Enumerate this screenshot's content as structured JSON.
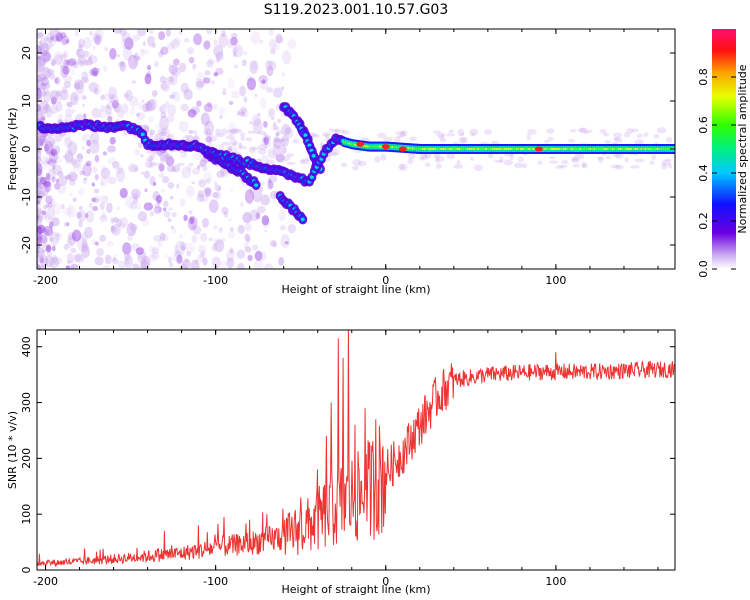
{
  "title": "S119.2023.001.10.57.G03",
  "chart_data": [
    {
      "type": "heatmap",
      "xlabel": "Height of straight line (km)",
      "ylabel": "Frequency (Hz)",
      "xlim": [
        -205,
        170
      ],
      "ylim": [
        -25,
        25
      ],
      "xticks": [
        -200,
        -100,
        0,
        100
      ],
      "xtick_labels": [
        "-200",
        "-100",
        "0",
        "100"
      ],
      "yticks": [
        -20,
        -10,
        0,
        10,
        20
      ],
      "ytick_labels": [
        "-20",
        "-10",
        "0",
        "10",
        "20"
      ],
      "colorbar": {
        "label": "Normalized spectral amplitude",
        "range": [
          0,
          1
        ],
        "ticks": [
          0.0,
          0.2,
          0.4,
          0.6,
          0.8
        ],
        "tick_labels": [
          "0.0",
          "0.2",
          "0.4",
          "0.6",
          "0.8"
        ]
      },
      "main_track": [
        [
          -203,
          4.5
        ],
        [
          -190,
          4.5
        ],
        [
          -175,
          5
        ],
        [
          -165,
          4.5
        ],
        [
          -155,
          5
        ],
        [
          -145,
          4
        ],
        [
          -140,
          1
        ],
        [
          -130,
          1
        ],
        [
          -120,
          1
        ],
        [
          -110,
          0.5
        ],
        [
          -100,
          -1
        ],
        [
          -90,
          -2
        ],
        [
          -80,
          -3
        ],
        [
          -70,
          -4
        ],
        [
          -60,
          -5
        ],
        [
          -50,
          -6
        ],
        [
          -45,
          -7
        ],
        [
          -40,
          -3
        ],
        [
          -35,
          0
        ],
        [
          -30,
          2
        ],
        [
          -20,
          1
        ],
        [
          -10,
          0.5
        ],
        [
          0,
          0.5
        ],
        [
          20,
          0
        ],
        [
          60,
          0
        ],
        [
          90,
          0
        ],
        [
          120,
          0
        ],
        [
          170,
          0
        ]
      ],
      "branches": [
        [
          [
            -60,
            9
          ],
          [
            -52,
            6
          ],
          [
            -46,
            2
          ],
          [
            -42,
            -2
          ],
          [
            -38,
            -4
          ]
        ],
        [
          [
            -52,
            6
          ],
          [
            -46,
            2
          ],
          [
            -42,
            -2
          ],
          [
            -40,
            -6
          ]
        ],
        [
          [
            -105,
            -1
          ],
          [
            -95,
            -3
          ],
          [
            -85,
            -5
          ],
          [
            -75,
            -7.5
          ]
        ],
        [
          [
            -62,
            -10
          ],
          [
            -56,
            -12
          ],
          [
            -48,
            -15
          ]
        ]
      ],
      "hotspots": [
        [
          -15,
          1
        ],
        [
          0,
          0.5
        ],
        [
          10,
          0
        ],
        [
          90,
          0
        ]
      ]
    },
    {
      "type": "line",
      "xlabel": "Height of straight line (km)",
      "ylabel": "SNR (10 * v/v)",
      "xlim": [
        -205,
        170
      ],
      "ylim": [
        0,
        430
      ],
      "xticks": [
        -200,
        -100,
        0,
        100
      ],
      "xtick_labels": [
        "-200",
        "-100",
        "0",
        "100"
      ],
      "yticks": [
        0,
        100,
        200,
        300,
        400
      ],
      "ytick_labels": [
        "0",
        "100",
        "200",
        "300",
        "400"
      ],
      "color": "#ee3333",
      "envelope": [
        [
          -205,
          12
        ],
        [
          -180,
          15
        ],
        [
          -150,
          22
        ],
        [
          -120,
          30
        ],
        [
          -100,
          40
        ],
        [
          -80,
          48
        ],
        [
          -60,
          60
        ],
        [
          -45,
          80
        ],
        [
          -35,
          100
        ],
        [
          -28,
          115
        ],
        [
          -22,
          125
        ],
        [
          -15,
          130
        ],
        [
          -8,
          150
        ],
        [
          0,
          175
        ],
        [
          10,
          210
        ],
        [
          20,
          260
        ],
        [
          30,
          310
        ],
        [
          40,
          340
        ],
        [
          60,
          350
        ],
        [
          90,
          355
        ],
        [
          120,
          355
        ],
        [
          170,
          360
        ]
      ],
      "spikes": [
        [
          -130,
          70
        ],
        [
          -110,
          80
        ],
        [
          -95,
          95
        ],
        [
          -80,
          90
        ],
        [
          -70,
          100
        ],
        [
          -50,
          130
        ],
        [
          -40,
          180
        ],
        [
          -35,
          240
        ],
        [
          -32,
          300
        ],
        [
          -28,
          415
        ],
        [
          -25,
          380
        ],
        [
          -22,
          440
        ],
        [
          -18,
          260
        ],
        [
          -12,
          290
        ],
        [
          -6,
          270
        ],
        [
          100,
          390
        ]
      ]
    }
  ]
}
